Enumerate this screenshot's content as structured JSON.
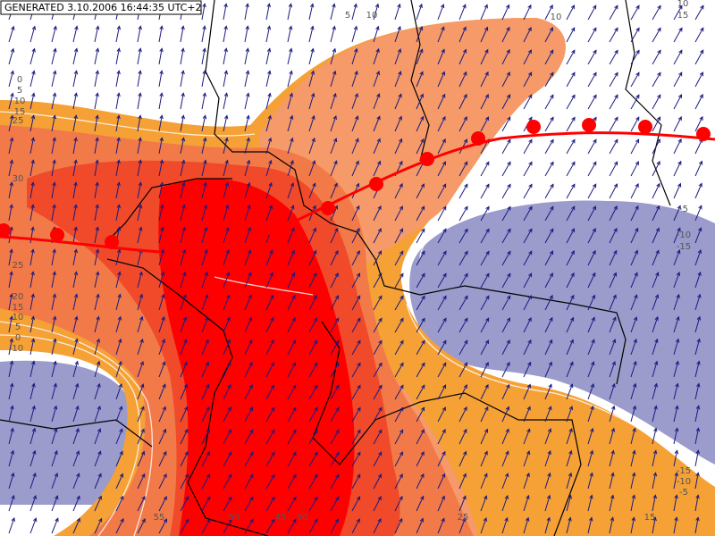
{
  "header": {
    "generated": "GENERATED 3.10.2006 16:44:35 UTC+2"
  },
  "contour_labels": [
    "5",
    "10",
    "10",
    "15",
    "10",
    "0",
    "5",
    "10",
    "15",
    "25",
    "30",
    "25",
    "20",
    "15",
    "10",
    "5",
    "0",
    "-10",
    "-5",
    "-10",
    "-15",
    "-15",
    "-10",
    "-5",
    "55",
    "50",
    "45",
    "30",
    "25",
    "15"
  ]
}
